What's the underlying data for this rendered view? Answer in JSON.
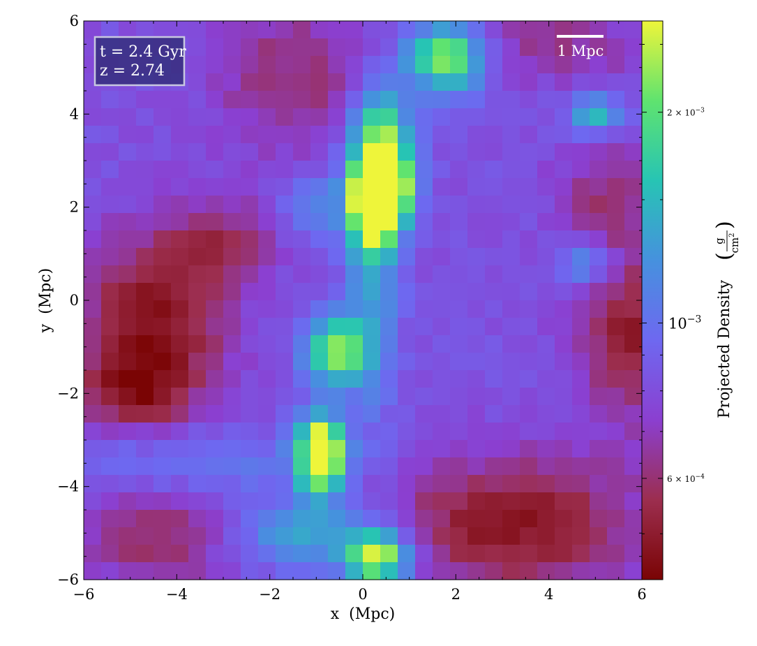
{
  "chart_data": {
    "type": "heatmap",
    "title": "",
    "xlabel": "x  (Mpc)",
    "ylabel": "y  (Mpc)",
    "xlim": [
      -6,
      6
    ],
    "ylim": [
      -6,
      6
    ],
    "xticks": [
      -6,
      -4,
      -2,
      0,
      2,
      4,
      6
    ],
    "yticks": [
      -6,
      -4,
      -2,
      0,
      2,
      4,
      6
    ],
    "xtick_labels": [
      "−6",
      "−4",
      "−2",
      "0",
      "2",
      "4",
      "6"
    ],
    "ytick_labels": [
      "−6",
      "−4",
      "−2",
      "0",
      "2",
      "4",
      "6"
    ],
    "grid_resolution": [
      32,
      32
    ],
    "annotation": {
      "time_label": "t = 2.4 Gyr",
      "redshift_label": "z = 2.74",
      "placement": "top-left"
    },
    "scale_bar": {
      "label": "1 Mpc",
      "length": 1,
      "placement": "top-right"
    },
    "colorbar": {
      "label": "Projected Density",
      "unit_numerator": "g",
      "unit_denominator": "cm",
      "unit_exponent": "2",
      "scale": "log",
      "vmin": 0.00043,
      "vmax": 0.0027,
      "colormap": [
        "#7a0404",
        "#9c2e4f",
        "#8b3fd0",
        "#6e68f0",
        "#4691de",
        "#27c4b4",
        "#5fe36f",
        "#eef53a"
      ],
      "ticks": [
        {
          "value": 0.002,
          "mantissa": "2",
          "exponent": "−3",
          "style": "minor"
        },
        {
          "value": 0.001,
          "mantissa": "",
          "exponent": "−3",
          "style": "major"
        },
        {
          "value": 0.0006,
          "mantissa": "6",
          "exponent": "−4",
          "style": "minor"
        }
      ]
    },
    "density_field": {
      "units": "g/cm^2",
      "background": 0.00082,
      "components": [
        {
          "x": 0.4,
          "y": 2.4,
          "sx": 0.4,
          "sy": 0.5,
          "factor": 2.2
        },
        {
          "x": 0.4,
          "y": 3.6,
          "sx": 0.45,
          "sy": 0.7,
          "factor": 0.9
        },
        {
          "x": 0.3,
          "y": 1.6,
          "sx": 0.35,
          "sy": 0.5,
          "factor": 0.8
        },
        {
          "x": 0.2,
          "y": 0.3,
          "sx": 0.4,
          "sy": 2.0,
          "factor": 0.45
        },
        {
          "x": 1.8,
          "y": 5.2,
          "sx": 0.6,
          "sy": 0.5,
          "factor": 1.1
        },
        {
          "x": -0.6,
          "y": -1.1,
          "sx": 0.45,
          "sy": 0.5,
          "factor": 1.0
        },
        {
          "x": -0.9,
          "y": -3.3,
          "sx": 0.35,
          "sy": 0.6,
          "factor": 1.5
        },
        {
          "x": 0.3,
          "y": -5.5,
          "sx": 0.5,
          "sy": 0.4,
          "factor": 1.2
        },
        {
          "x": -1.3,
          "y": -5.0,
          "sx": 1.0,
          "sy": 0.5,
          "factor": 0.5
        },
        {
          "x": 5.0,
          "y": 4.0,
          "sx": 0.4,
          "sy": 0.3,
          "factor": 0.6
        },
        {
          "x": 4.8,
          "y": 0.8,
          "sx": 0.4,
          "sy": 0.3,
          "factor": 0.5
        },
        {
          "x": -3.8,
          "y": -3.5,
          "sx": 2.0,
          "sy": 0.5,
          "factor": 0.3
        },
        {
          "x": -1.0,
          "y": 2.0,
          "sx": 0.6,
          "sy": 0.6,
          "factor": 0.3
        },
        {
          "x": -4.5,
          "y": -0.5,
          "sx": 1.1,
          "sy": 1.3,
          "factor": -0.58
        },
        {
          "x": -5.0,
          "y": -2.0,
          "sx": 0.8,
          "sy": 0.6,
          "factor": -0.35
        },
        {
          "x": 3.3,
          "y": -4.8,
          "sx": 1.8,
          "sy": 1.0,
          "factor": -0.55
        },
        {
          "x": 5.8,
          "y": -0.8,
          "sx": 0.8,
          "sy": 1.2,
          "factor": -0.5
        },
        {
          "x": -3.0,
          "y": 1.3,
          "sx": 0.9,
          "sy": 0.6,
          "factor": -0.3
        },
        {
          "x": -4.5,
          "y": -5.0,
          "sx": 1.2,
          "sy": 0.8,
          "factor": -0.35
        },
        {
          "x": -1.5,
          "y": 4.8,
          "sx": 1.2,
          "sy": 1.3,
          "factor": -0.3
        },
        {
          "x": 4.0,
          "y": 5.5,
          "sx": 1.5,
          "sy": 0.6,
          "factor": -0.25
        },
        {
          "x": 5.3,
          "y": 2.2,
          "sx": 0.8,
          "sy": 0.8,
          "factor": -0.3
        }
      ]
    }
  }
}
